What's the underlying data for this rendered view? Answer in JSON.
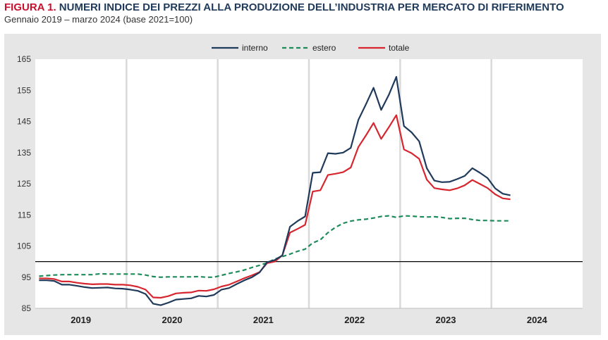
{
  "figure": {
    "label": "FIGURA 1.",
    "title_rest": "NUMERI INDICE DEI PREZZI ALLA PRODUZIONE DELL’INDUSTRIA PER MERCATO DI RIFERIMENTO",
    "subtitle": "Gennaio 2019 – marzo 2024 (base 2021=100)"
  },
  "chart_data": {
    "type": "line",
    "title": "NUMERI INDICE DEI PREZZI ALLA PRODUZIONE DELL’INDUSTRIA PER MERCATO DI RIFERIMENTO",
    "subtitle": "Gennaio 2019 – marzo 2024 (base 2021=100)",
    "xlabel": "",
    "ylabel": "",
    "ylim": [
      85,
      165
    ],
    "yticks": [
      85,
      95,
      105,
      115,
      125,
      135,
      145,
      155,
      165
    ],
    "year_labels": [
      "2019",
      "2020",
      "2021",
      "2022",
      "2023",
      "2024"
    ],
    "x_months": 72,
    "reference_line": 100,
    "grid": "vertical",
    "legend_position": "top-center",
    "series": [
      {
        "name": "interno",
        "color": "#1f3a5a",
        "style": "solid",
        "values": [
          94.0,
          94.0,
          93.8,
          92.6,
          92.6,
          92.2,
          91.8,
          91.5,
          91.6,
          91.7,
          91.4,
          91.3,
          91.0,
          90.6,
          89.6,
          86.5,
          86.0,
          86.8,
          87.8,
          88.0,
          88.2,
          89.0,
          88.8,
          89.3,
          91.0,
          91.5,
          92.8,
          94.0,
          95.0,
          96.5,
          99.8,
          100.5,
          102.0,
          111.2,
          113.0,
          114.5,
          128.5,
          128.7,
          134.8,
          134.6,
          135.0,
          136.5,
          145.5,
          150.5,
          155.8,
          148.7,
          153.5,
          159.3,
          143.5,
          141.5,
          138.6,
          130.0,
          126.0,
          125.5,
          125.6,
          126.5,
          127.5,
          130.0,
          128.5,
          126.8,
          123.5,
          121.8,
          121.3
        ]
      },
      {
        "name": "estero",
        "color": "#1e8c5a",
        "style": "dashed",
        "values": [
          95.3,
          95.5,
          95.7,
          95.8,
          95.8,
          95.8,
          95.8,
          95.8,
          96.1,
          96.0,
          96.0,
          96.0,
          96.0,
          96.0,
          95.7,
          95.2,
          95.0,
          95.1,
          95.1,
          95.1,
          95.1,
          95.2,
          95.0,
          95.0,
          95.6,
          96.2,
          96.7,
          97.3,
          98.1,
          98.8,
          99.6,
          100.8,
          101.6,
          102.4,
          103.3,
          104.0,
          106.0,
          107.0,
          109.3,
          111.0,
          112.3,
          113.0,
          113.4,
          113.6,
          114.0,
          114.5,
          114.7,
          114.2,
          114.7,
          114.6,
          114.4,
          114.3,
          114.4,
          114.2,
          113.8,
          113.9,
          113.9,
          113.5,
          113.2,
          113.2,
          113.1,
          113.1,
          113.1
        ]
      },
      {
        "name": "totale",
        "color": "#d7262f",
        "style": "solid",
        "values": [
          94.6,
          94.6,
          94.4,
          93.6,
          93.6,
          93.2,
          92.9,
          92.7,
          92.8,
          92.8,
          92.6,
          92.6,
          92.4,
          91.9,
          91.0,
          88.5,
          88.4,
          88.9,
          89.8,
          90.0,
          90.1,
          90.7,
          90.6,
          91.1,
          92.0,
          92.6,
          93.6,
          94.7,
          95.6,
          96.6,
          99.5,
          100.0,
          102.0,
          109.3,
          110.5,
          111.8,
          122.5,
          122.9,
          127.8,
          128.2,
          128.7,
          130.2,
          136.8,
          140.5,
          144.5,
          139.4,
          143.1,
          147.0,
          136.0,
          134.8,
          133.0,
          126.3,
          123.6,
          123.2,
          122.9,
          123.5,
          124.5,
          126.2,
          124.9,
          123.6,
          121.6,
          120.3,
          120.0
        ]
      }
    ]
  }
}
